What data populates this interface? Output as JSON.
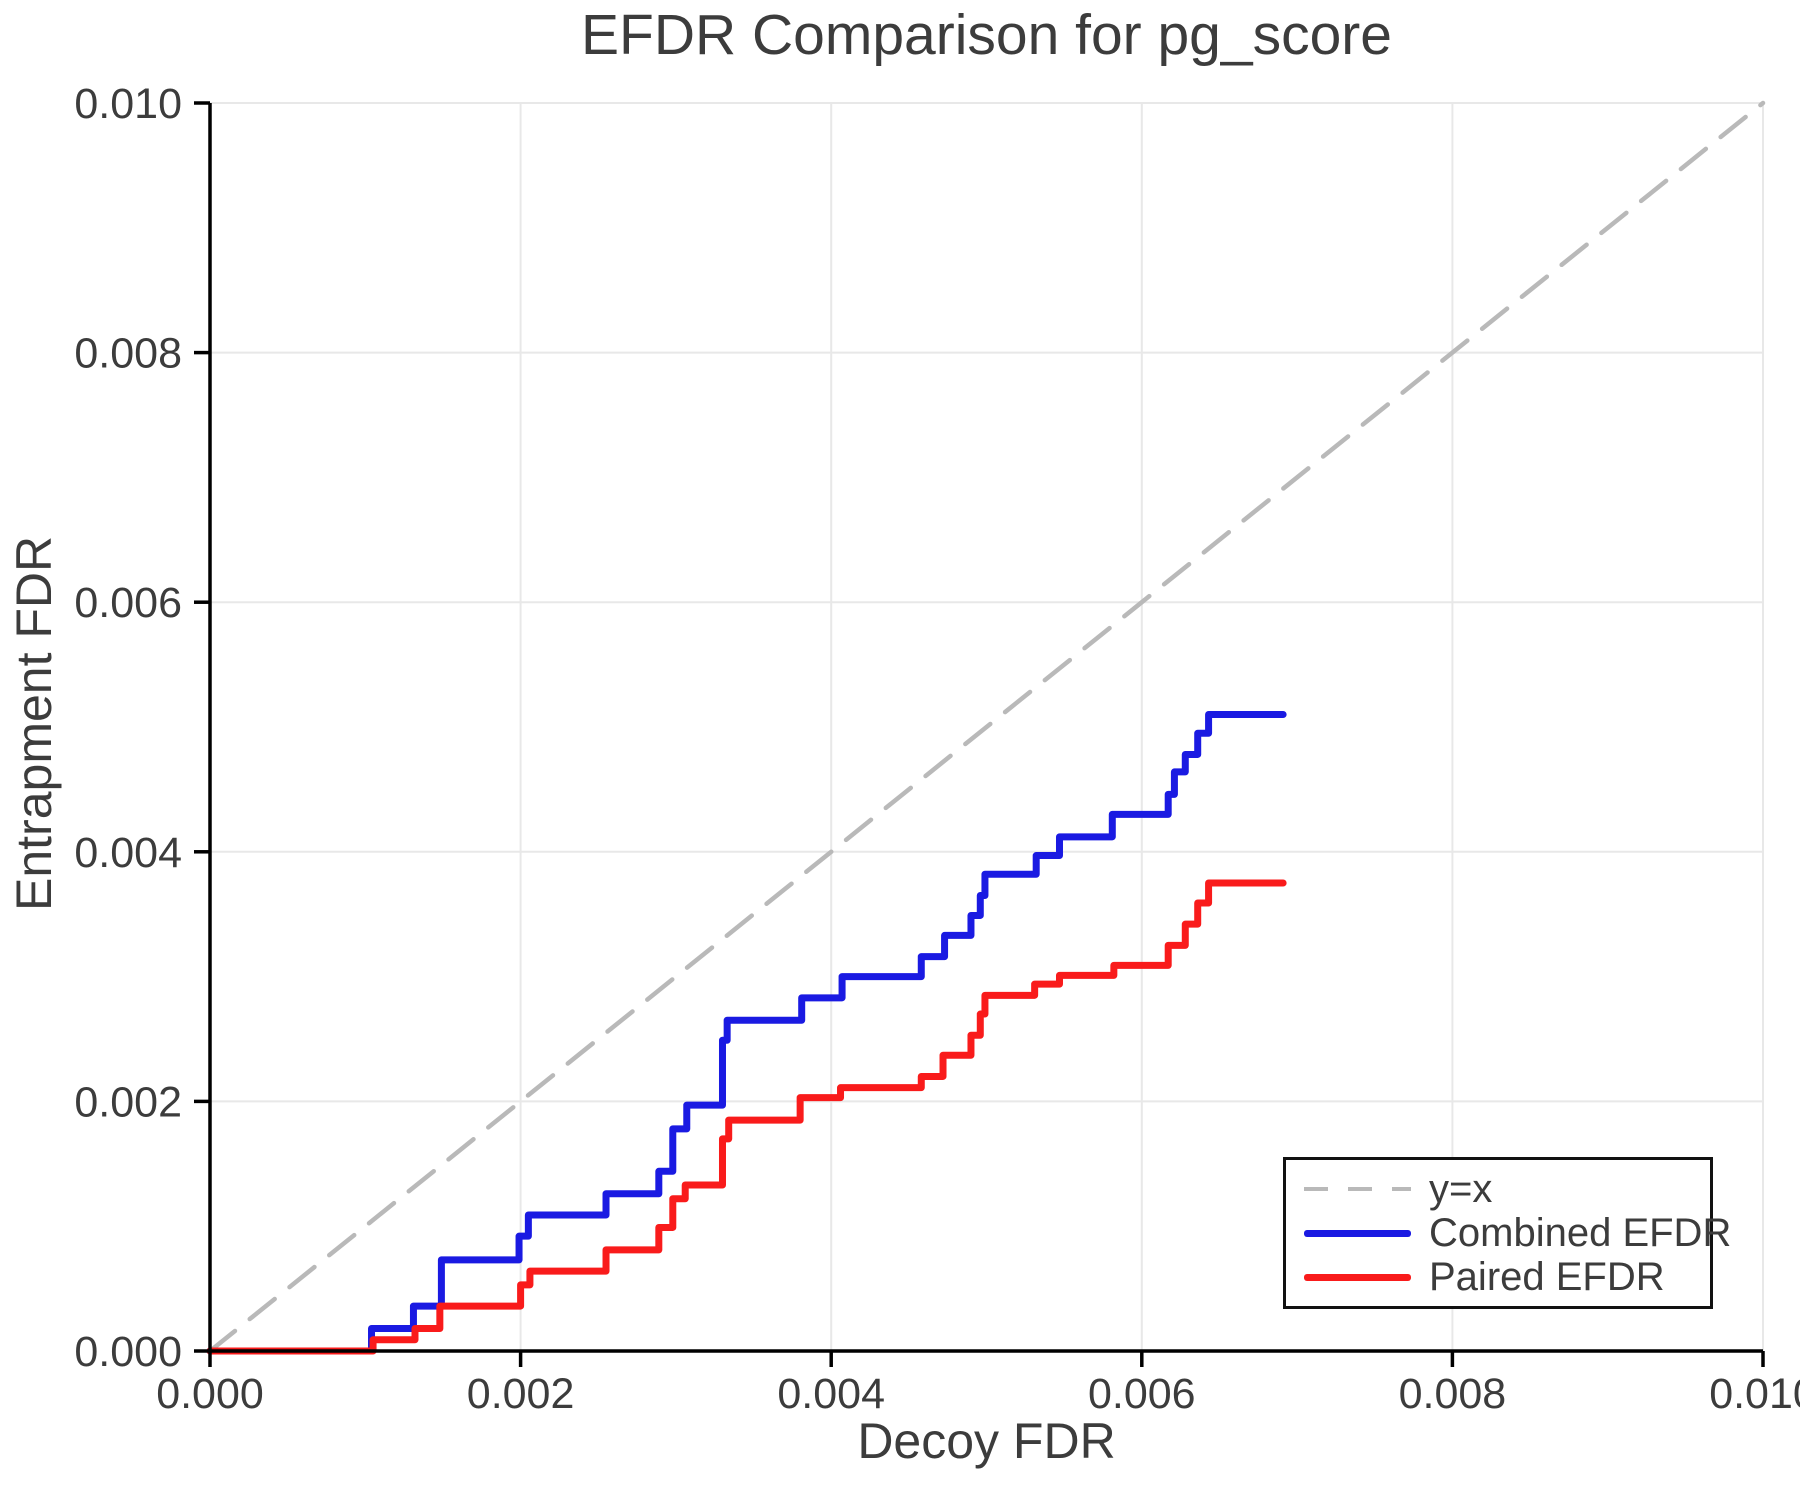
{
  "page": {
    "background": "#ffffff"
  },
  "chart_data": {
    "type": "line",
    "title": "EFDR Comparison for pg_score",
    "xlabel": "Decoy FDR",
    "ylabel": "Entrapment FDR",
    "xlim": [
      0.0,
      0.01
    ],
    "ylim": [
      0.0,
      0.01
    ],
    "xticks": [
      0.0,
      0.002,
      0.004,
      0.006,
      0.008,
      0.01
    ],
    "yticks": [
      0.0,
      0.002,
      0.004,
      0.006,
      0.008,
      0.01
    ],
    "tick_decimals": 3,
    "grid": true,
    "legend_position": "lower right",
    "appearance": {
      "grid_color": "#e8e8e8",
      "axis_color": "#000000",
      "tick_color": "#000000",
      "text_color": "#3c3c3c",
      "background": "#ffffff"
    },
    "series": [
      {
        "name": "y=x",
        "type": "line",
        "style": "dashed",
        "color": "#b9b9b9",
        "width": 4.5,
        "points": [
          [
            0.0,
            0.0
          ],
          [
            0.01,
            0.01
          ]
        ]
      },
      {
        "name": "Combined EFDR",
        "type": "step",
        "style": "solid",
        "color": "#1a1ae2",
        "width": 7,
        "end_x": 0.00691,
        "points": [
          [
            0.0,
            0.0
          ],
          [
            0.00104,
            0.00018
          ],
          [
            0.00131,
            0.00036
          ],
          [
            0.00149,
            0.00073
          ],
          [
            0.00199,
            0.00092
          ],
          [
            0.00205,
            0.00109
          ],
          [
            0.00255,
            0.00126
          ],
          [
            0.00289,
            0.00144
          ],
          [
            0.00298,
            0.00178
          ],
          [
            0.00307,
            0.00197
          ],
          [
            0.0033,
            0.00249
          ],
          [
            0.00333,
            0.00265
          ],
          [
            0.00381,
            0.00283
          ],
          [
            0.00407,
            0.003
          ],
          [
            0.00458,
            0.00316
          ],
          [
            0.00473,
            0.00333
          ],
          [
            0.0049,
            0.00349
          ],
          [
            0.00496,
            0.00365
          ],
          [
            0.00499,
            0.00382
          ],
          [
            0.00532,
            0.00397
          ],
          [
            0.00547,
            0.00412
          ],
          [
            0.00581,
            0.0043
          ],
          [
            0.00617,
            0.00446
          ],
          [
            0.00621,
            0.00464
          ],
          [
            0.00628,
            0.00478
          ],
          [
            0.00636,
            0.00495
          ],
          [
            0.00643,
            0.0051
          ]
        ]
      },
      {
        "name": "Paired EFDR",
        "type": "step",
        "style": "solid",
        "color": "#f91b1b",
        "width": 7,
        "end_x": 0.00691,
        "points": [
          [
            0.0,
            0.0
          ],
          [
            0.00105,
            9e-05
          ],
          [
            0.00132,
            0.00018
          ],
          [
            0.00148,
            0.00036
          ],
          [
            0.002,
            0.00053
          ],
          [
            0.00206,
            0.00064
          ],
          [
            0.00255,
            0.00081
          ],
          [
            0.00289,
            0.00099
          ],
          [
            0.00298,
            0.00122
          ],
          [
            0.00306,
            0.00133
          ],
          [
            0.0033,
            0.0017
          ],
          [
            0.00334,
            0.00185
          ],
          [
            0.0038,
            0.00203
          ],
          [
            0.00406,
            0.00211
          ],
          [
            0.00458,
            0.0022
          ],
          [
            0.00472,
            0.00237
          ],
          [
            0.0049,
            0.00253
          ],
          [
            0.00496,
            0.0027
          ],
          [
            0.00499,
            0.00285
          ],
          [
            0.00531,
            0.00294
          ],
          [
            0.00547,
            0.00301
          ],
          [
            0.00582,
            0.00309
          ],
          [
            0.00617,
            0.00325
          ],
          [
            0.00628,
            0.00342
          ],
          [
            0.00636,
            0.00359
          ],
          [
            0.00643,
            0.00375
          ]
        ]
      }
    ]
  }
}
